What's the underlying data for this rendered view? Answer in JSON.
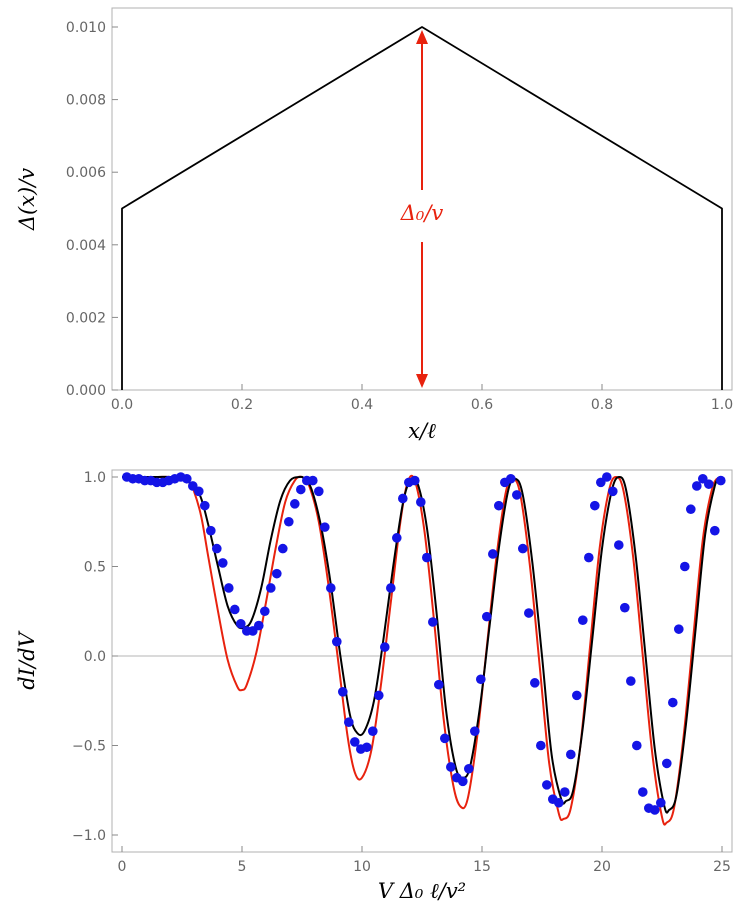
{
  "chart_data": [
    {
      "type": "line",
      "xlabel": "x/ℓ",
      "ylabel": "Δ(x)/v",
      "xlim": [
        0,
        1
      ],
      "ylim": [
        0,
        0.01
      ],
      "xticks": [
        "0.0",
        "0.2",
        "0.4",
        "0.6",
        "0.8",
        "1.0"
      ],
      "yticks": [
        "0.000",
        "0.002",
        "0.004",
        "0.006",
        "0.008",
        "0.010"
      ],
      "series": [
        {
          "x": [
            0,
            0,
            0.5,
            1,
            1
          ],
          "y": [
            0,
            0.005,
            0.01,
            0.005,
            0
          ]
        }
      ],
      "annotation": {
        "label": "Δ₀/v",
        "x": 0.5,
        "from": 0,
        "to": 0.01,
        "color": "#e8220e"
      },
      "grid": false
    },
    {
      "type": "line",
      "xlabel": "V Δ₀ ℓ/v²",
      "ylabel": "dI/dV",
      "xlim": [
        0,
        25
      ],
      "ylim": [
        -1,
        1
      ],
      "xticks": [
        "0",
        "5",
        "10",
        "15",
        "20",
        "25"
      ],
      "yticks": [
        "-1.0",
        "-0.5",
        "0.0",
        "0.5",
        "1.0"
      ],
      "series": [
        {
          "color": "#e8220e",
          "type": "line",
          "x": [
            0,
            0.5,
            1,
            1.5,
            2,
            2.5,
            2.8,
            3.0,
            3.3,
            3.6,
            4.0,
            4.4,
            4.8,
            5.0,
            5.2,
            5.6,
            6.0,
            6.4,
            6.8,
            7.2,
            7.5,
            7.8,
            8.2,
            8.6,
            9.0,
            9.4,
            9.7,
            10.0,
            10.4,
            10.8,
            11.2,
            11.6,
            11.9,
            12.2,
            12.6,
            13.0,
            13.4,
            13.8,
            14.1,
            14.4,
            14.8,
            15.2,
            15.6,
            16.0,
            16.3,
            16.6,
            17.0,
            17.4,
            17.8,
            18.2,
            18.4,
            18.7,
            19.1,
            19.5,
            19.9,
            20.3,
            20.6,
            20.9,
            21.3,
            21.7,
            22.1,
            22.5,
            22.7,
            23.0,
            23.4,
            23.8,
            24.2,
            24.6,
            24.9
          ],
          "y": [
            1,
            1,
            1,
            1,
            1,
            0.99,
            0.97,
            0.92,
            0.78,
            0.55,
            0.25,
            -0.02,
            -0.17,
            -0.19,
            -0.16,
            0.02,
            0.3,
            0.6,
            0.86,
            0.98,
            1.0,
            0.95,
            0.75,
            0.4,
            -0.02,
            -0.45,
            -0.65,
            -0.68,
            -0.52,
            -0.15,
            0.3,
            0.75,
            0.97,
            0.98,
            0.7,
            0.2,
            -0.35,
            -0.72,
            -0.84,
            -0.8,
            -0.45,
            0.05,
            0.55,
            0.92,
            0.99,
            0.9,
            0.5,
            -0.05,
            -0.6,
            -0.88,
            -0.91,
            -0.85,
            -0.5,
            0.05,
            0.6,
            0.93,
            1.0,
            0.92,
            0.55,
            0.0,
            -0.55,
            -0.9,
            -0.93,
            -0.85,
            -0.45,
            0.1,
            0.65,
            0.94,
            1.0
          ]
        },
        {
          "color": "#000000",
          "type": "line",
          "x": [
            0,
            0.5,
            1,
            1.5,
            2,
            2.5,
            3.0,
            3.3,
            3.6,
            4.0,
            4.4,
            4.8,
            5.1,
            5.4,
            5.8,
            6.2,
            6.6,
            7.0,
            7.4,
            7.6,
            7.9,
            8.3,
            8.7,
            9.1,
            9.5,
            9.8,
            10.1,
            10.5,
            10.9,
            11.3,
            11.7,
            12.0,
            12.3,
            12.7,
            13.1,
            13.5,
            13.9,
            14.2,
            14.5,
            14.9,
            15.3,
            15.7,
            16.1,
            16.4,
            16.7,
            17.1,
            17.5,
            17.9,
            18.3,
            18.5,
            18.8,
            19.2,
            19.6,
            20.0,
            20.4,
            20.7,
            21.0,
            21.4,
            21.8,
            22.2,
            22.6,
            22.8,
            23.1,
            23.5,
            23.9,
            24.3,
            24.7,
            24.9
          ],
          "y": [
            1,
            1,
            1,
            1,
            1,
            0.99,
            0.95,
            0.88,
            0.73,
            0.5,
            0.28,
            0.17,
            0.16,
            0.2,
            0.38,
            0.65,
            0.87,
            0.98,
            1.0,
            0.99,
            0.93,
            0.72,
            0.4,
            0.0,
            -0.33,
            -0.43,
            -0.42,
            -0.25,
            0.1,
            0.5,
            0.85,
            0.98,
            0.97,
            0.72,
            0.25,
            -0.3,
            -0.62,
            -0.68,
            -0.62,
            -0.3,
            0.15,
            0.6,
            0.93,
            0.99,
            0.9,
            0.52,
            0.0,
            -0.55,
            -0.8,
            -0.81,
            -0.75,
            -0.4,
            0.1,
            0.6,
            0.92,
            1.0,
            0.93,
            0.56,
            0.02,
            -0.52,
            -0.84,
            -0.86,
            -0.78,
            -0.38,
            0.15,
            0.68,
            0.95,
            0.99
          ]
        },
        {
          "color": "#1414e6",
          "type": "scatter",
          "x": [
            0.2,
            0.45,
            0.7,
            0.95,
            1.2,
            1.45,
            1.7,
            1.95,
            2.2,
            2.45,
            2.7,
            2.95,
            3.2,
            3.45,
            3.7,
            3.95,
            4.2,
            4.45,
            4.7,
            4.95,
            5.2,
            5.45,
            5.7,
            5.95,
            6.2,
            6.45,
            6.7,
            6.95,
            7.2,
            7.45,
            7.7,
            7.95,
            8.2,
            8.45,
            8.7,
            8.95,
            9.2,
            9.45,
            9.7,
            9.95,
            10.2,
            10.45,
            10.7,
            10.95,
            11.2,
            11.45,
            11.7,
            11.95,
            12.2,
            12.45,
            12.7,
            12.95,
            13.2,
            13.45,
            13.7,
            13.95,
            14.2,
            14.45,
            14.7,
            14.95,
            15.2,
            15.45,
            15.7,
            15.95,
            16.2,
            16.45,
            16.7,
            16.95,
            17.2,
            17.45,
            17.7,
            17.95,
            18.2,
            18.45,
            18.7,
            18.95,
            19.2,
            19.45,
            19.7,
            19.95,
            20.2,
            20.45,
            20.7,
            20.95,
            21.2,
            21.45,
            21.7,
            21.95,
            22.2,
            22.45,
            22.7,
            22.95,
            23.2,
            23.45,
            23.7,
            23.95,
            24.2,
            24.45,
            24.7,
            24.95
          ],
          "y": [
            1.0,
            0.99,
            0.99,
            0.98,
            0.98,
            0.97,
            0.97,
            0.98,
            0.99,
            1.0,
            0.99,
            0.95,
            0.92,
            0.84,
            0.7,
            0.6,
            0.52,
            0.38,
            0.26,
            0.18,
            0.14,
            0.14,
            0.17,
            0.25,
            0.38,
            0.46,
            0.6,
            0.75,
            0.85,
            0.93,
            0.98,
            0.98,
            0.92,
            0.72,
            0.38,
            0.08,
            -0.2,
            -0.37,
            -0.48,
            -0.52,
            -0.51,
            -0.42,
            -0.22,
            0.05,
            0.38,
            0.66,
            0.88,
            0.97,
            0.98,
            0.86,
            0.55,
            0.19,
            -0.16,
            -0.46,
            -0.62,
            -0.68,
            -0.7,
            -0.63,
            -0.42,
            -0.13,
            0.22,
            0.57,
            0.84,
            0.97,
            0.99,
            0.9,
            0.6,
            0.24,
            -0.15,
            -0.5,
            -0.72,
            -0.8,
            -0.82,
            -0.76,
            -0.55,
            -0.22,
            0.2,
            0.55,
            0.84,
            0.97,
            1.0,
            0.92,
            0.62,
            0.27,
            -0.14,
            -0.5,
            -0.76,
            -0.85,
            -0.86,
            -0.82,
            -0.6,
            -0.26,
            0.15,
            0.5,
            0.82,
            0.95,
            0.99,
            0.96,
            0.7,
            0.98
          ]
        }
      ],
      "grid": false
    }
  ]
}
